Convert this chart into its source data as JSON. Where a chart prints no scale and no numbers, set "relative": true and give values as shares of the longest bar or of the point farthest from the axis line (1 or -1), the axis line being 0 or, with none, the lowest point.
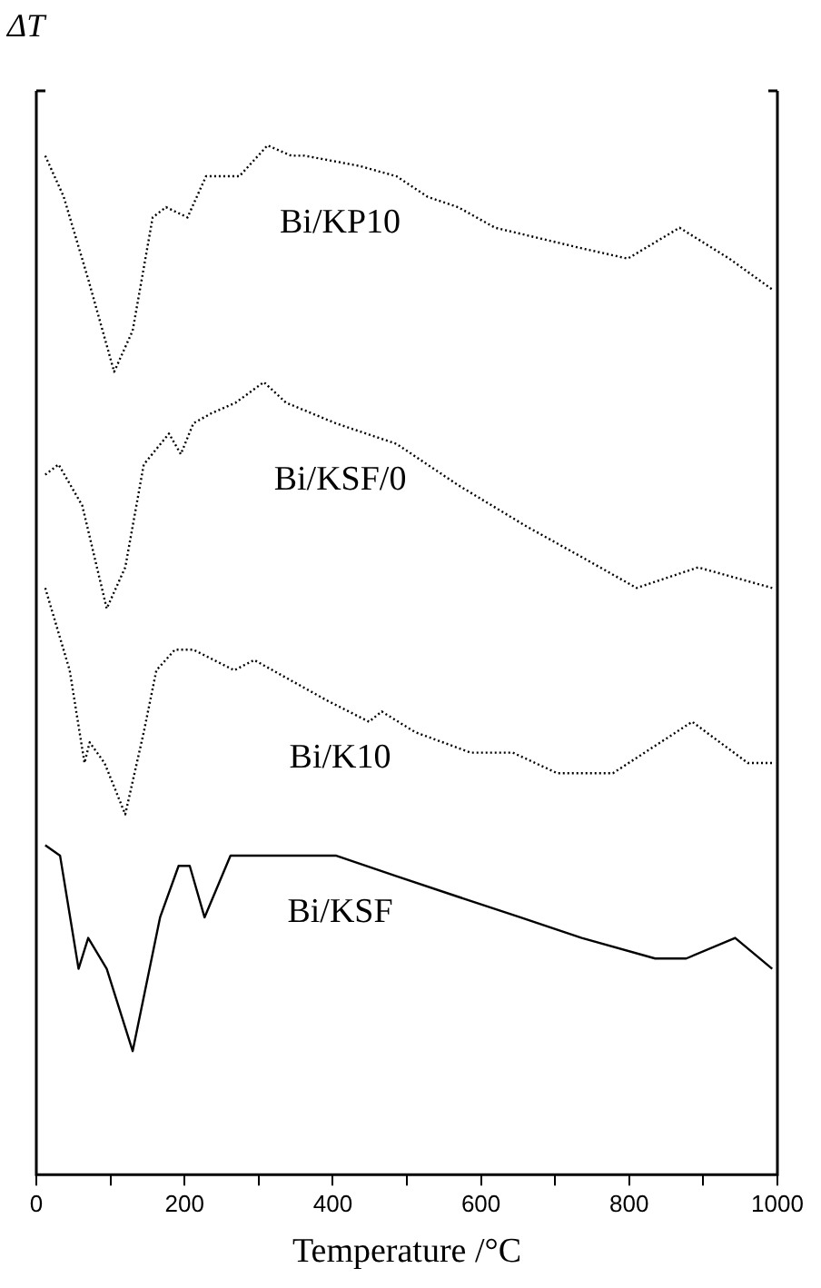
{
  "chart_data": {
    "type": "line",
    "relative": true,
    "xlabel": "Temperature /°C",
    "ylabel": "ΔT",
    "xlim": [
      0,
      1000
    ],
    "xticks": [
      0,
      {
        "value": 100,
        "label": null
      },
      200,
      {
        "value": 300,
        "label": null
      },
      400,
      {
        "value": 500,
        "label": null
      },
      600,
      {
        "value": 700,
        "label": null
      },
      800,
      {
        "value": 900,
        "label": null
      },
      1000
    ],
    "grid": false,
    "legend": false,
    "marker": "none",
    "series": [
      {
        "name": "Bi/KP10",
        "color": "#000000",
        "line_style": "dotted",
        "x": [
          12,
          37,
          70,
          105,
          130,
          157,
          175,
          204,
          229,
          274,
          312,
          344,
          362,
          436,
          486,
          528,
          569,
          619,
          736,
          798,
          868,
          935,
          993
        ],
        "values": [
          0.99,
          0.95,
          0.87,
          0.78,
          0.82,
          0.93,
          0.94,
          0.93,
          0.97,
          0.97,
          1,
          0.99,
          0.99,
          0.98,
          0.97,
          0.95,
          0.94,
          0.92,
          0.9,
          0.89,
          0.92,
          0.89,
          0.86
        ]
      },
      {
        "name": "Bi/KSF/0",
        "color": "#000000",
        "line_style": "dotted",
        "x": [
          12,
          30,
          62,
          95,
          120,
          145,
          179,
          195,
          212,
          237,
          269,
          307,
          337,
          404,
          486,
          569,
          661,
          736,
          810,
          893,
          993
        ],
        "values": [
          0.68,
          0.69,
          0.65,
          0.55,
          0.59,
          0.69,
          0.72,
          0.7,
          0.73,
          0.74,
          0.75,
          0.77,
          0.75,
          0.73,
          0.71,
          0.67,
          0.63,
          0.6,
          0.57,
          0.59,
          0.57
        ]
      },
      {
        "name": "Bi/K10",
        "color": "#000000",
        "line_style": "dotted",
        "x": [
          12,
          45,
          65,
          72,
          92,
          120,
          145,
          162,
          187,
          212,
          267,
          294,
          394,
          449,
          466,
          511,
          586,
          643,
          703,
          778,
          885,
          960,
          993
        ],
        "values": [
          0.57,
          0.49,
          0.4,
          0.42,
          0.4,
          0.35,
          0.43,
          0.49,
          0.51,
          0.51,
          0.49,
          0.5,
          0.46,
          0.44,
          0.45,
          0.43,
          0.41,
          0.41,
          0.39,
          0.39,
          0.44,
          0.4,
          0.4
        ]
      },
      {
        "name": "Bi/KSF",
        "color": "#000000",
        "line_style": "solid",
        "x": [
          12,
          32,
          57,
          70,
          95,
          130,
          167,
          192,
          207,
          227,
          262,
          337,
          404,
          486,
          569,
          653,
          736,
          835,
          877,
          943,
          993
        ],
        "values": [
          0.32,
          0.31,
          0.2,
          0.23,
          0.2,
          0.12,
          0.25,
          0.3,
          0.3,
          0.25,
          0.31,
          0.31,
          0.31,
          0.29,
          0.27,
          0.25,
          0.23,
          0.21,
          0.21,
          0.23,
          0.2
        ]
      }
    ]
  }
}
